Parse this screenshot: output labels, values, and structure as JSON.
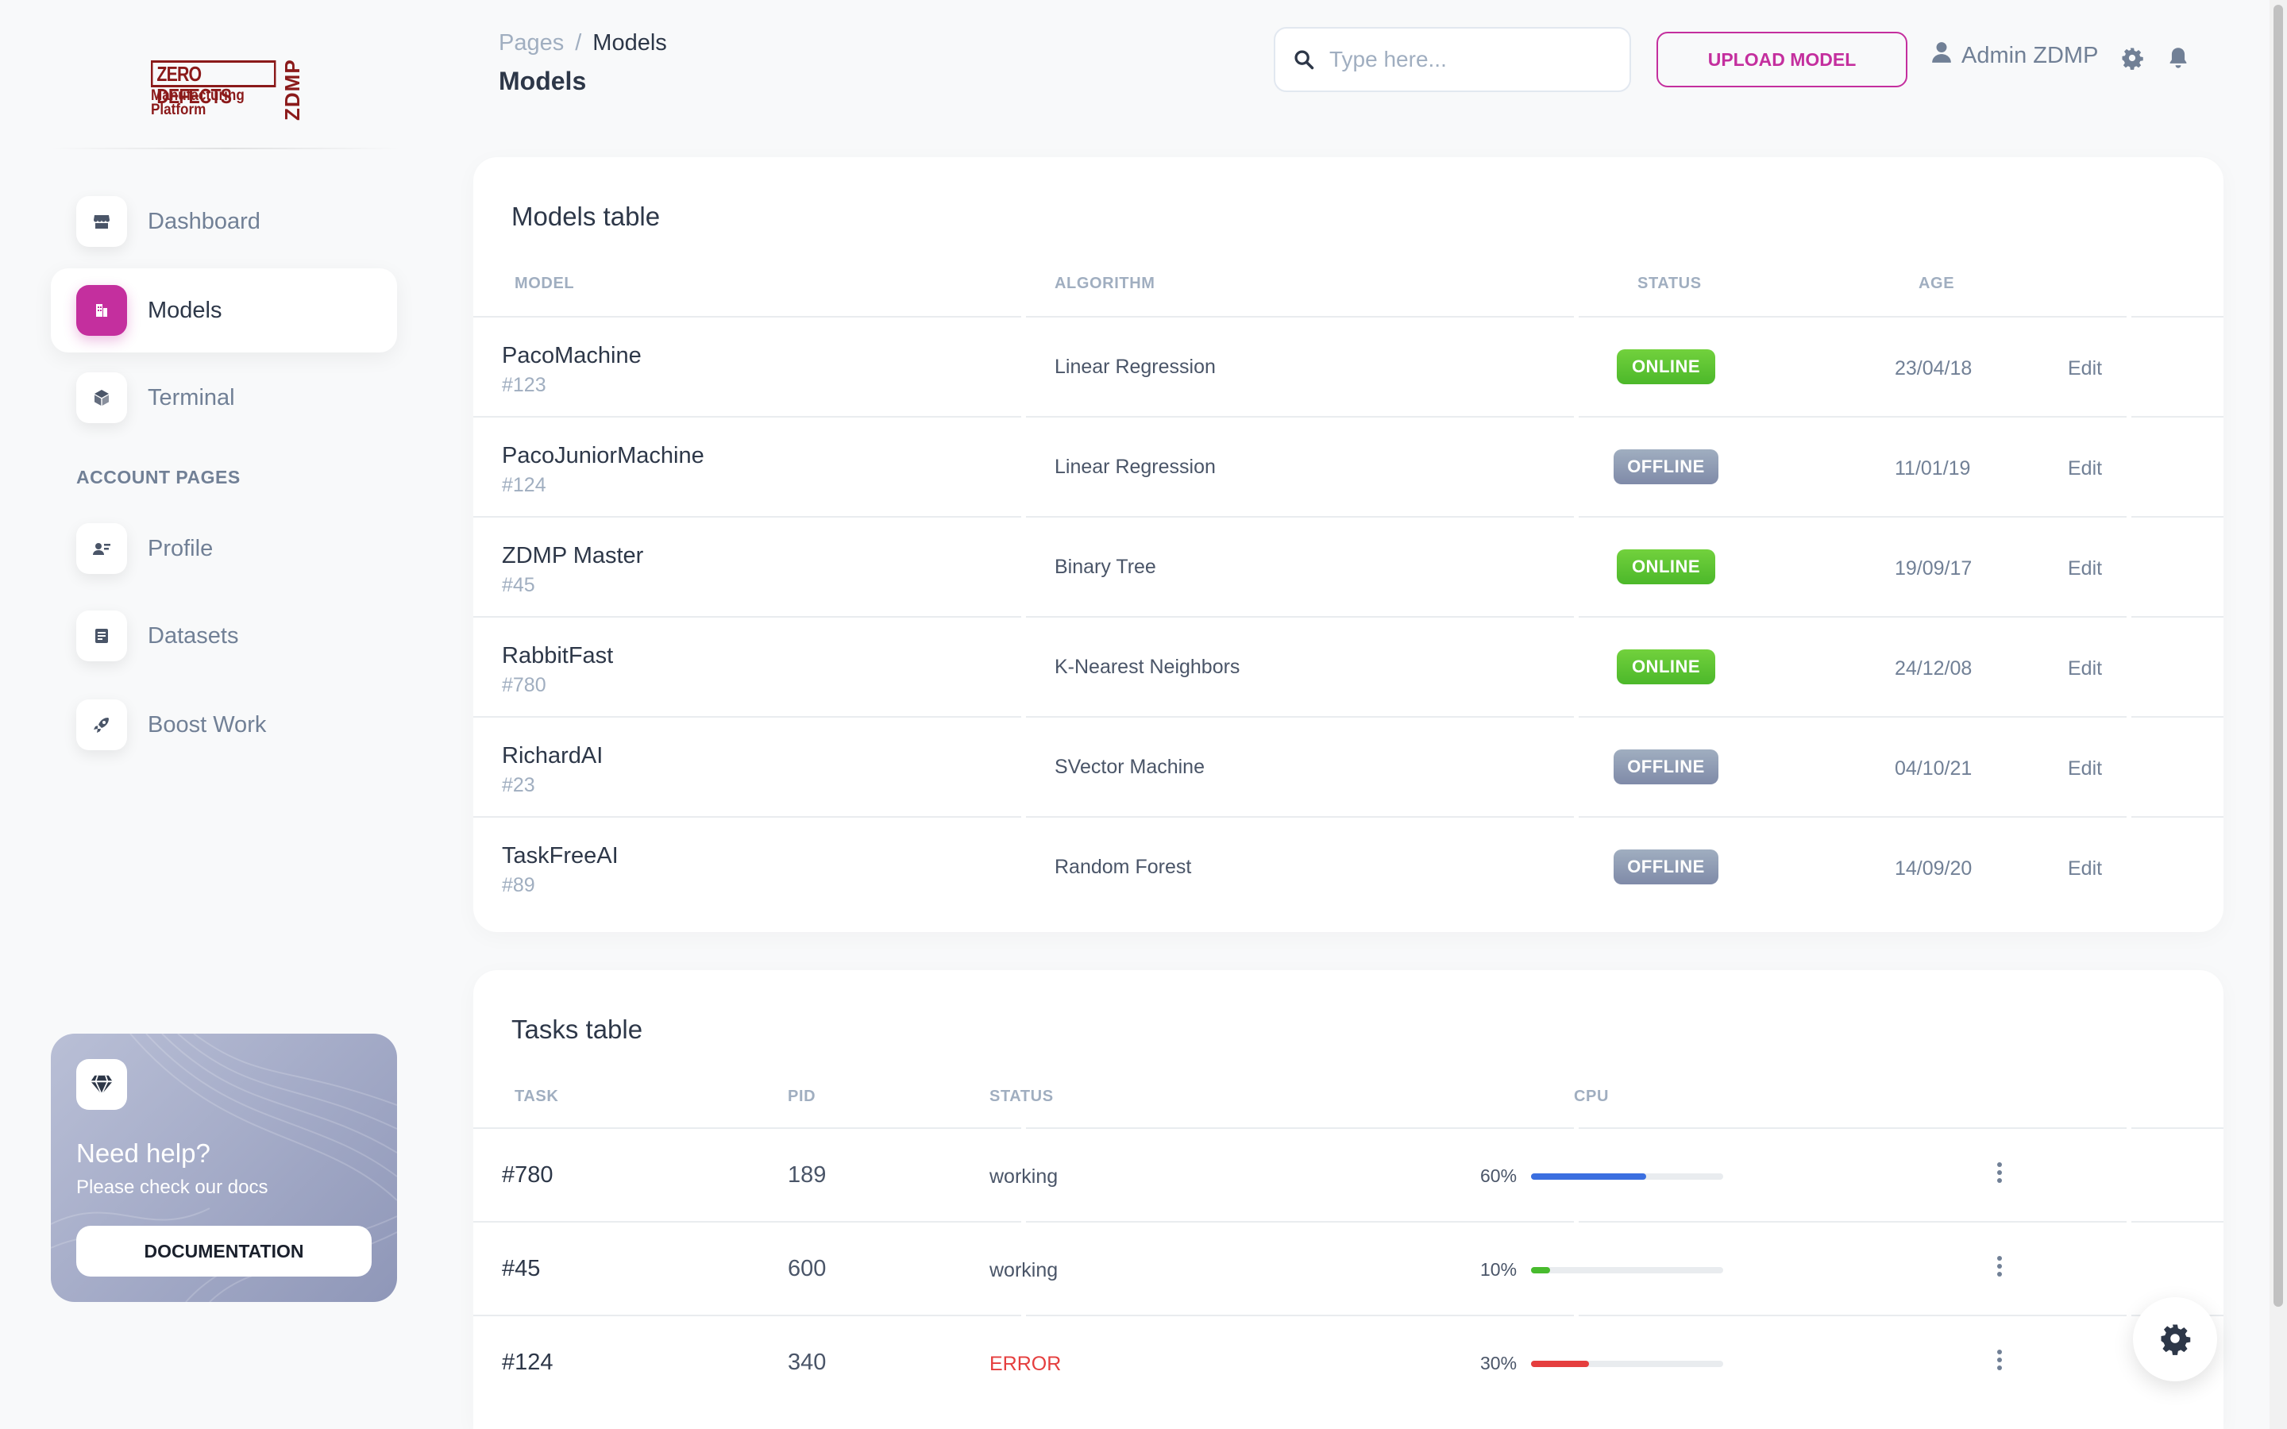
{
  "logo": {
    "line1": "ZERO DEFECTS",
    "line2": "Manufacturing Platform",
    "vertical": "ZDMP"
  },
  "sidebar": {
    "items": [
      {
        "label": "Dashboard"
      },
      {
        "label": "Models"
      },
      {
        "label": "Terminal"
      }
    ],
    "account_heading": "ACCOUNT PAGES",
    "account_items": [
      {
        "label": "Profile"
      },
      {
        "label": "Datasets"
      },
      {
        "label": "Boost Work"
      }
    ],
    "help": {
      "title": "Need help?",
      "subtitle": "Please check our docs",
      "button": "DOCUMENTATION"
    }
  },
  "header": {
    "breadcrumb_root": "Pages",
    "breadcrumb_sep": "/",
    "breadcrumb_current": "Models",
    "title": "Models",
    "search_placeholder": "Type here...",
    "upload_label": "UPLOAD MODEL",
    "user_name": "Admin ZDMP"
  },
  "models_table": {
    "title": "Models table",
    "columns": [
      "MODEL",
      "ALGORITHM",
      "STATUS",
      "AGE"
    ],
    "rows": [
      {
        "name": "PacoMachine",
        "id": "#123",
        "algorithm": "Linear Regression",
        "status": "ONLINE",
        "age": "23/04/18",
        "action": "Edit"
      },
      {
        "name": "PacoJuniorMachine",
        "id": "#124",
        "algorithm": "Linear Regression",
        "status": "OFFLINE",
        "age": "11/01/19",
        "action": "Edit"
      },
      {
        "name": "ZDMP Master",
        "id": "#45",
        "algorithm": "Binary Tree",
        "status": "ONLINE",
        "age": "19/09/17",
        "action": "Edit"
      },
      {
        "name": "RabbitFast",
        "id": "#780",
        "algorithm": "K-Nearest Neighbors",
        "status": "ONLINE",
        "age": "24/12/08",
        "action": "Edit"
      },
      {
        "name": "RichardAI",
        "id": "#23",
        "algorithm": "SVector Machine",
        "status": "OFFLINE",
        "age": "04/10/21",
        "action": "Edit"
      },
      {
        "name": "TaskFreeAI",
        "id": "#89",
        "algorithm": "Random Forest",
        "status": "OFFLINE",
        "age": "14/09/20",
        "action": "Edit"
      }
    ]
  },
  "tasks_table": {
    "title": "Tasks table",
    "columns": [
      "TASK",
      "PID",
      "STATUS",
      "CPU"
    ],
    "rows": [
      {
        "task": "#780",
        "pid": "189",
        "status": "working",
        "cpu_label": "60%",
        "cpu": 60,
        "bar_color": "#3b6fe0"
      },
      {
        "task": "#45",
        "pid": "600",
        "status": "working",
        "cpu_label": "10%",
        "cpu": 10,
        "bar_color": "#48bb2e"
      },
      {
        "task": "#124",
        "pid": "340",
        "status": "ERROR",
        "cpu_label": "30%",
        "cpu": 30,
        "bar_color": "#e53e3e"
      }
    ]
  },
  "colors": {
    "accent": "#c42f9e",
    "online": "#4cb82a",
    "offline": "#8a94b0",
    "error": "#e53e3e"
  },
  "icons": [
    "shop-icon",
    "building-icon",
    "box-icon",
    "profile-icon",
    "document-icon",
    "rocket-icon",
    "diamond-icon",
    "search-icon",
    "user-icon",
    "gear-icon",
    "bell-icon",
    "kebab-icon"
  ]
}
